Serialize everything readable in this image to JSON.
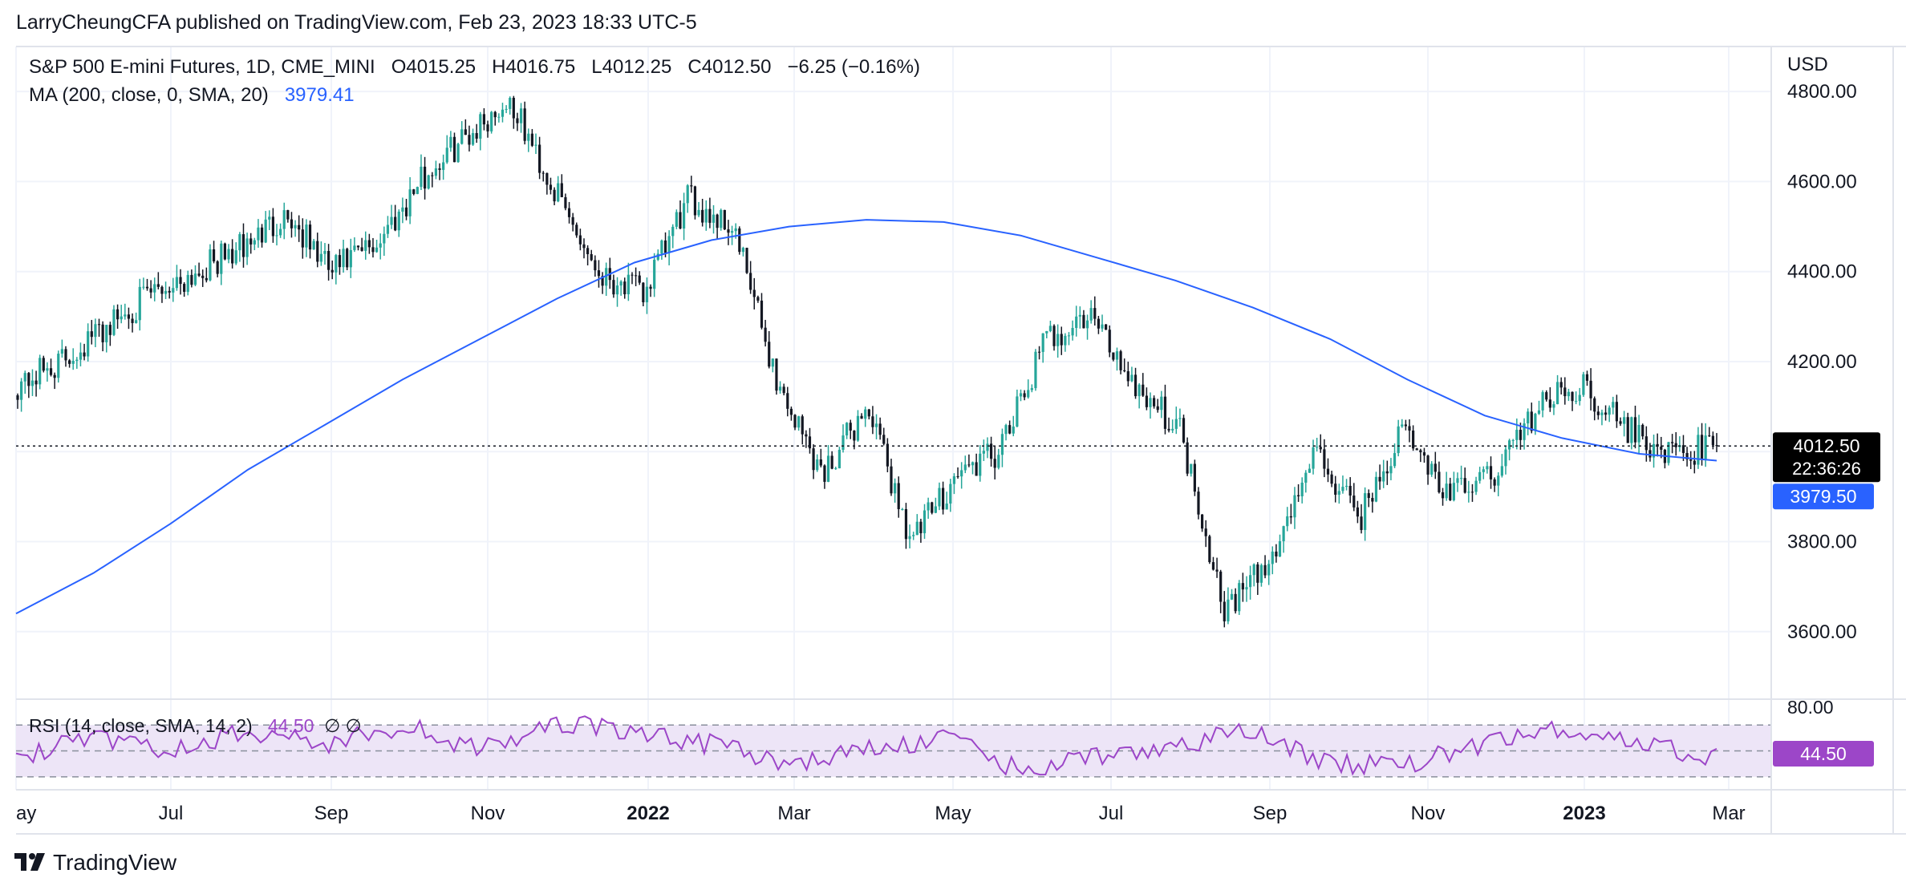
{
  "header": {
    "attribution": "LarryCheungCFA published on TradingView.com, Feb 23, 2023 18:33 UTC-5"
  },
  "legend": {
    "symbol_line": "S&P 500 E-mini Futures, 1D, CME_MINI",
    "open": "O4015.25",
    "high": "H4016.75",
    "low": "L4012.25",
    "close": "C4012.50",
    "change": "−6.25 (−0.16%)",
    "ma_label": "MA (200, close, 0, SMA, 20)",
    "ma_value": "3979.41",
    "rsi_label": "RSI (14, close, SMA, 14, 2)",
    "rsi_value": "44.50",
    "rsi_extra": "∅  ∅"
  },
  "price_axis": {
    "currency": "USD",
    "ticks": [
      "4800.00",
      "4600.00",
      "4400.00",
      "4200.00",
      "3800.00",
      "3600.00"
    ],
    "last_price_label": "4012.50",
    "countdown": "22:36:26",
    "ma_label": "3979.50"
  },
  "rsi_axis": {
    "ticks": [
      "80.00"
    ],
    "value_label": "44.50"
  },
  "time_axis": {
    "ticks": [
      {
        "label": "ay",
        "bold": false
      },
      {
        "label": "Jul",
        "bold": false
      },
      {
        "label": "Sep",
        "bold": false
      },
      {
        "label": "Nov",
        "bold": false
      },
      {
        "label": "2022",
        "bold": true
      },
      {
        "label": "Mar",
        "bold": false
      },
      {
        "label": "May",
        "bold": false
      },
      {
        "label": "Jul",
        "bold": false
      },
      {
        "label": "Sep",
        "bold": false
      },
      {
        "label": "Nov",
        "bold": false
      },
      {
        "label": "2023",
        "bold": true
      },
      {
        "label": "Mar",
        "bold": false
      }
    ]
  },
  "brand": {
    "name": "TradingView"
  },
  "colors": {
    "up": "#26a69a",
    "down": "#131722",
    "ma": "#2962ff",
    "rsi": "#9c46c8",
    "rsi_band": "#ede5f7",
    "grid": "#f0f3fa",
    "last_price_bg": "#000000",
    "ma_label_bg": "#2962ff",
    "rsi_label_bg": "#9c46c8"
  },
  "chart_data": {
    "type": "candlestick",
    "title": "S&P 500 E-mini Futures, 1D, CME_MINI",
    "ylabel": "USD",
    "ylim": [
      3450,
      4900
    ],
    "x_range": [
      "2021-05",
      "2023-03"
    ],
    "last_close": 4012.5,
    "series": [
      {
        "name": "MA (200, close, 0, SMA, 20)",
        "type": "line",
        "values": [
          3640,
          3730,
          3840,
          3960,
          4060,
          4160,
          4250,
          4340,
          4420,
          4470,
          4500,
          4515,
          4510,
          4480,
          4430,
          4380,
          4320,
          4250,
          4160,
          4080,
          4030,
          3995,
          3980
        ]
      },
      {
        "name": "RSI (14, close, SMA, 14, 2)",
        "type": "line",
        "ylim": [
          20,
          85
        ],
        "bands": [
          70,
          50,
          30
        ],
        "values": [
          45,
          60,
          50,
          65,
          55,
          70,
          50,
          72,
          65,
          55,
          40,
          50,
          60,
          35,
          45,
          55,
          65,
          40,
          40,
          55,
          68,
          55,
          45
        ]
      }
    ],
    "closes": [
      4150,
      4200,
      4280,
      4350,
      4400,
      4450,
      4530,
      4400,
      4460,
      4600,
      4700,
      4780,
      4580,
      4400,
      4350,
      4560,
      4500,
      4150,
      3950,
      4100,
      3800,
      3950,
      4000,
      4250,
      4300,
      4150,
      4050,
      3650,
      3750,
      4000,
      3850,
      4050,
      3900,
      3950,
      4100,
      4150,
      4050,
      3990,
      4012
    ]
  }
}
